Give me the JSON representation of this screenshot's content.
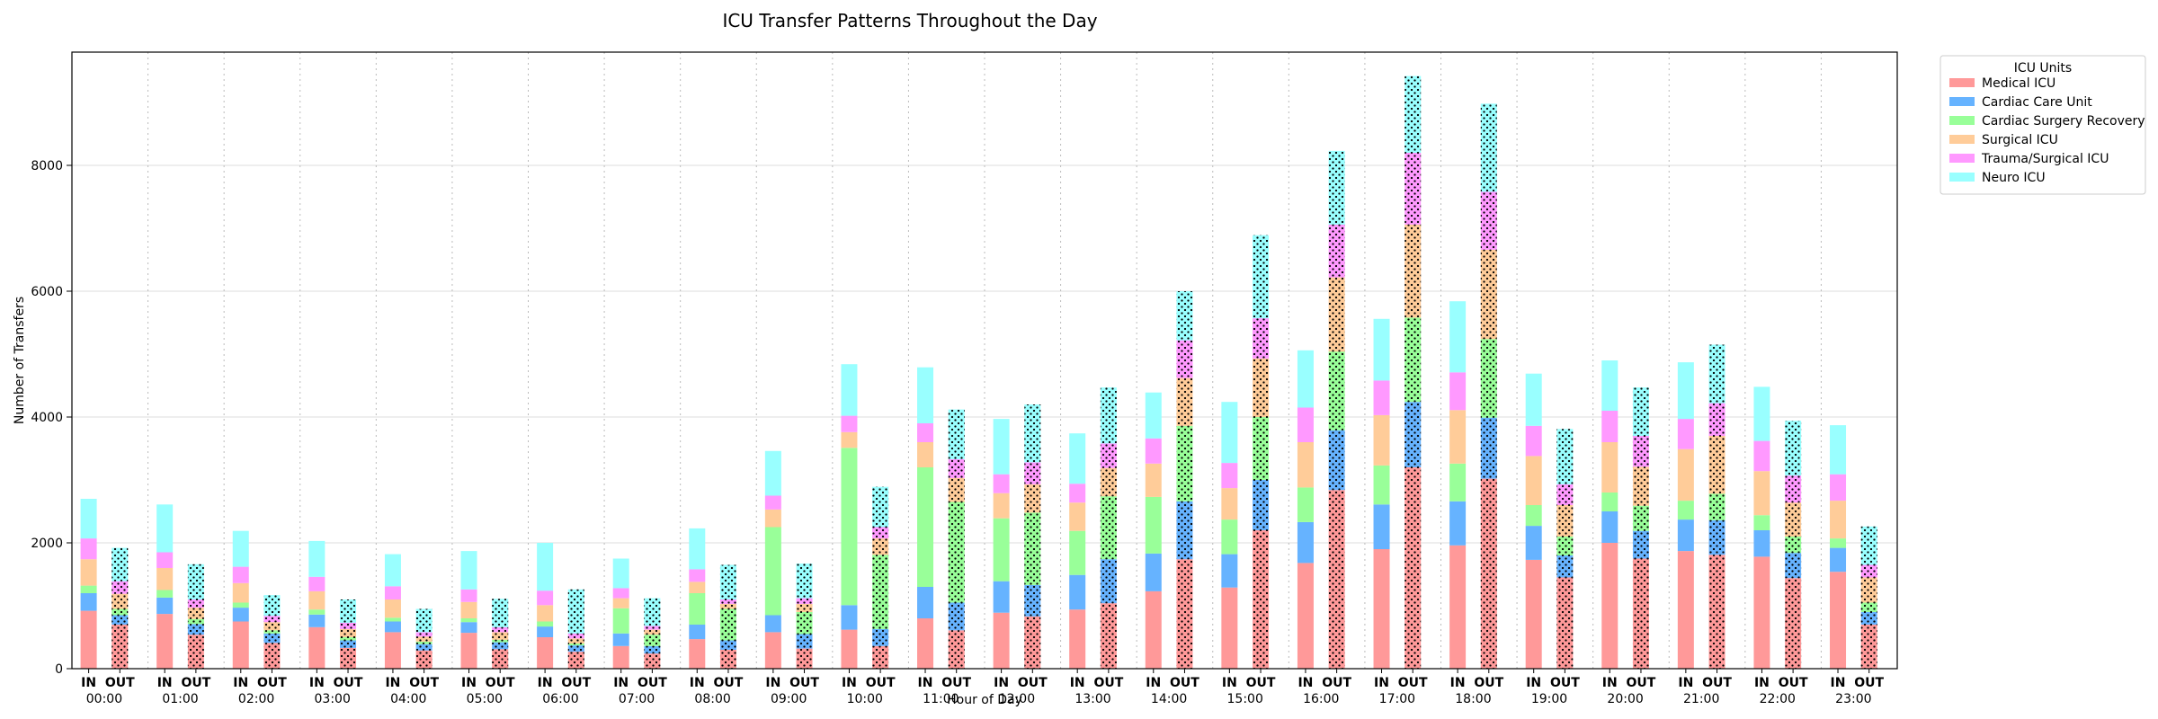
{
  "chart_data": {
    "type": "bar",
    "stacked": true,
    "title": "ICU Transfer Patterns Throughout the Day",
    "xlabel": "Hour of Day",
    "ylabel": "Number of Transfers",
    "ylim": [
      0,
      9800
    ],
    "yticks": [
      0,
      2000,
      4000,
      6000,
      8000
    ],
    "grid": "on",
    "legend_title": "ICU Units",
    "legend_placement": "outside-top-right",
    "bar_labels": [
      "IN",
      "OUT"
    ],
    "out_bars_hatched": true,
    "categories": [
      "00:00",
      "01:00",
      "02:00",
      "03:00",
      "04:00",
      "05:00",
      "06:00",
      "07:00",
      "08:00",
      "09:00",
      "10:00",
      "11:00",
      "12:00",
      "13:00",
      "14:00",
      "15:00",
      "16:00",
      "17:00",
      "18:00",
      "19:00",
      "20:00",
      "21:00",
      "22:00",
      "23:00"
    ],
    "series": [
      {
        "name": "Medical ICU",
        "color": "#ff9999",
        "in": [
          920,
          870,
          750,
          660,
          580,
          570,
          500,
          360,
          470,
          580,
          620,
          800,
          890,
          940,
          1230,
          1290,
          1680,
          1900,
          1960,
          1730,
          2000,
          1870,
          1780,
          1540
        ],
        "out": [
          700,
          540,
          410,
          330,
          290,
          310,
          270,
          240,
          300,
          320,
          360,
          610,
          830,
          1040,
          1740,
          2200,
          2840,
          3200,
          3020,
          1450,
          1750,
          1810,
          1440,
          700
        ]
      },
      {
        "name": "Cardiac Care Unit",
        "color": "#66b3ff",
        "in": [
          280,
          260,
          220,
          200,
          170,
          170,
          170,
          200,
          230,
          270,
          390,
          500,
          500,
          550,
          600,
          530,
          650,
          710,
          700,
          540,
          500,
          500,
          420,
          380
        ],
        "out": [
          150,
          170,
          150,
          120,
          100,
          110,
          100,
          120,
          150,
          230,
          270,
          440,
          500,
          700,
          920,
          800,
          950,
          1040,
          970,
          350,
          440,
          550,
          400,
          200
        ]
      },
      {
        "name": "Cardiac Surgery Recovery",
        "color": "#99ff99",
        "in": [
          120,
          120,
          80,
          80,
          60,
          60,
          80,
          400,
          500,
          1400,
          2500,
          1900,
          1000,
          700,
          900,
          550,
          550,
          620,
          600,
          330,
          300,
          300,
          240,
          150
        ],
        "out": [
          100,
          80,
          50,
          50,
          40,
          40,
          30,
          180,
          500,
          350,
          1180,
          1600,
          1150,
          1000,
          1200,
          1000,
          1250,
          1340,
          1250,
          300,
          400,
          420,
          260,
          150
        ]
      },
      {
        "name": "Surgical ICU",
        "color": "#ffcc99",
        "in": [
          420,
          350,
          310,
          290,
          290,
          260,
          260,
          160,
          180,
          280,
          250,
          400,
          400,
          450,
          530,
          500,
          720,
          800,
          850,
          780,
          800,
          820,
          700,
          600
        ],
        "out": [
          240,
          180,
          130,
          130,
          80,
          120,
          80,
          80,
          80,
          130,
          260,
          380,
          450,
          450,
          760,
          930,
          1180,
          1480,
          1420,
          500,
          620,
          920,
          540,
          400
        ]
      },
      {
        "name": "Trauma/Surgical ICU",
        "color": "#ff99ff",
        "in": [
          330,
          250,
          260,
          230,
          210,
          200,
          230,
          160,
          200,
          220,
          260,
          300,
          300,
          300,
          400,
          400,
          550,
          550,
          600,
          480,
          500,
          480,
          480,
          420
        ],
        "out": [
          200,
          130,
          100,
          100,
          70,
          80,
          80,
          60,
          70,
          90,
          180,
          300,
          350,
          390,
          600,
          640,
          840,
          1140,
          920,
          330,
          490,
          520,
          430,
          200
        ]
      },
      {
        "name": "Neuro ICU",
        "color": "#99ffff",
        "in": [
          630,
          760,
          570,
          570,
          510,
          610,
          760,
          470,
          650,
          710,
          820,
          890,
          880,
          800,
          730,
          970,
          910,
          980,
          1130,
          830,
          800,
          900,
          860,
          780
        ],
        "out": [
          530,
          560,
          330,
          370,
          370,
          450,
          700,
          440,
          550,
          550,
          640,
          790,
          920,
          890,
          780,
          1320,
          1170,
          1220,
          1400,
          880,
          770,
          930,
          870,
          610
        ]
      }
    ]
  }
}
